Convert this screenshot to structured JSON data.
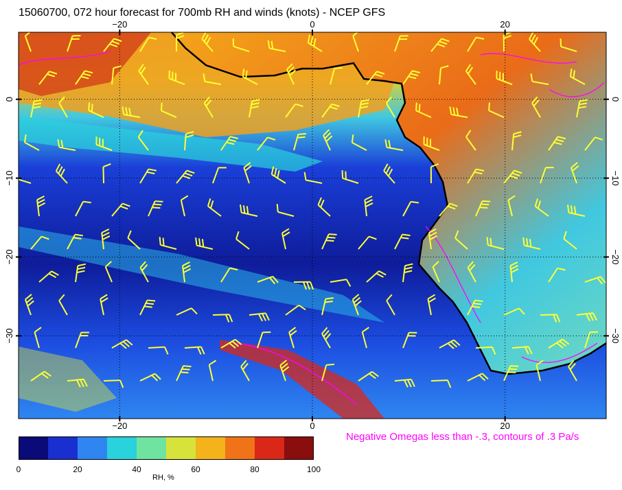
{
  "title": "15060700, 072 hour forecast for 700mb RH and winds (knots) - NCEP GFS",
  "note": "Negative Omegas less than -.3, contours of .3 Pa/s",
  "lon_ticks": [
    {
      "value": -20,
      "label": "−20"
    },
    {
      "value": 0,
      "label": "0"
    },
    {
      "value": 20,
      "label": "20"
    }
  ],
  "lat_ticks": [
    {
      "value": 0,
      "label": "0"
    },
    {
      "value": -10,
      "label": "−10"
    },
    {
      "value": -20,
      "label": "−20"
    },
    {
      "value": -30,
      "label": "−30"
    }
  ],
  "colorbar": {
    "label": "RH, %",
    "ticks": [
      "0",
      "20",
      "40",
      "60",
      "80",
      "100"
    ],
    "colors": [
      "#0a0a78",
      "#1a2fd0",
      "#2f86f0",
      "#29d2dc",
      "#6fe3a0",
      "#d7e23a",
      "#f4b31b",
      "#f07318",
      "#d92818",
      "#8a0e0e"
    ]
  },
  "colors": {
    "barb": "#ffff33",
    "omega": "#ff00ff",
    "coast": "#000000"
  }
}
